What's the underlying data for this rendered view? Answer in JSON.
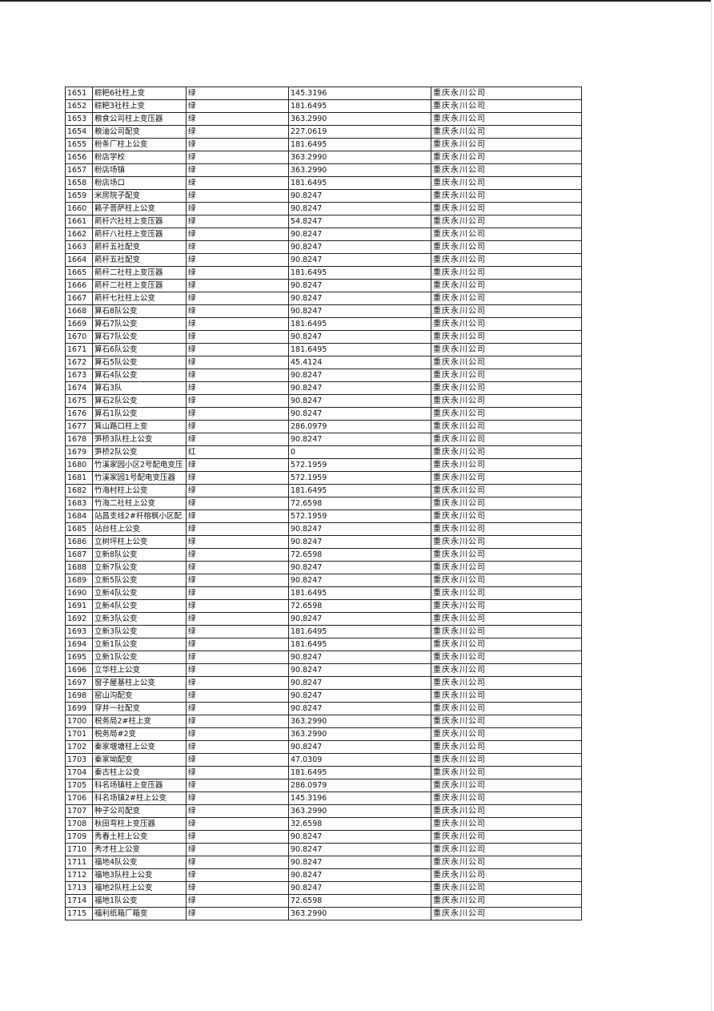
{
  "table": {
    "rows": [
      [
        "1651",
        "粽粑6社柱上变",
        "绿",
        "145.3196",
        "重庆永川公司"
      ],
      [
        "1652",
        "粽粑3社柱上变",
        "绿",
        "181.6495",
        "重庆永川公司"
      ],
      [
        "1653",
        "粮食公司柱上变压器",
        "绿",
        "363.2990",
        "重庆永川公司"
      ],
      [
        "1654",
        "粮油公司配变",
        "绿",
        "227.0619",
        "重庆永川公司"
      ],
      [
        "1655",
        "粉条厂柱上公变",
        "绿",
        "181.6495",
        "重庆永川公司"
      ],
      [
        "1656",
        "粉店学校",
        "绿",
        "363.2990",
        "重庆永川公司"
      ],
      [
        "1657",
        "粉店场镇",
        "绿",
        "363.2990",
        "重庆永川公司"
      ],
      [
        "1658",
        "粉店场口",
        "绿",
        "181.6495",
        "重庆永川公司"
      ],
      [
        "1659",
        "米房院子配变",
        "绿",
        "90.8247",
        "重庆永川公司"
      ],
      [
        "1660",
        "籁子菩萨柱上公变",
        "绿",
        "90.8247",
        "重庆永川公司"
      ],
      [
        "1661",
        "箭杆六社柱上变压器",
        "绿",
        "54.8247",
        "重庆永川公司"
      ],
      [
        "1662",
        "箭杆八社柱上变压器",
        "绿",
        "90.8247",
        "重庆永川公司"
      ],
      [
        "1663",
        "箭杆五社配变",
        "绿",
        "90.8247",
        "重庆永川公司"
      ],
      [
        "1664",
        "箭杆五社配变",
        "绿",
        "90.8247",
        "重庆永川公司"
      ],
      [
        "1665",
        "箭杆二社柱上变压器",
        "绿",
        "181.6495",
        "重庆永川公司"
      ],
      [
        "1666",
        "箭杆二社柱上变压器",
        "绿",
        "90.8247",
        "重庆永川公司"
      ],
      [
        "1667",
        "箭杆七社柱上公变",
        "绿",
        "90.8247",
        "重庆永川公司"
      ],
      [
        "1668",
        "算石8队公变",
        "绿",
        "90.8247",
        "重庆永川公司"
      ],
      [
        "1669",
        "算石7队公变",
        "绿",
        "181.6495",
        "重庆永川公司"
      ],
      [
        "1670",
        "算石7队公变",
        "绿",
        "90.8247",
        "重庆永川公司"
      ],
      [
        "1671",
        "算石6队公变",
        "绿",
        "181.6495",
        "重庆永川公司"
      ],
      [
        "1672",
        "算石5队公变",
        "绿",
        "45.4124",
        "重庆永川公司"
      ],
      [
        "1673",
        "算石4队公变",
        "绿",
        "90.8247",
        "重庆永川公司"
      ],
      [
        "1674",
        "算石3队",
        "绿",
        "90.8247",
        "重庆永川公司"
      ],
      [
        "1675",
        "算石2队公变",
        "绿",
        "90.8247",
        "重庆永川公司"
      ],
      [
        "1676",
        "算石1队公变",
        "绿",
        "90.8247",
        "重庆永川公司"
      ],
      [
        "1677",
        "箕山路口柱上变",
        "绿",
        "286.0979",
        "重庆永川公司"
      ],
      [
        "1678",
        "笋桥3队柱上公变",
        "绿",
        "90.8247",
        "重庆永川公司"
      ],
      [
        "1679",
        "笋桥2队公变",
        "红",
        "0",
        "重庆永川公司"
      ],
      [
        "1680",
        "竹溪家园小区2号配电变压",
        "绿",
        "572.1959",
        "重庆永川公司"
      ],
      [
        "1681",
        "竹溪家园1号配电变压器",
        "绿",
        "572.1959",
        "重庆永川公司"
      ],
      [
        "1682",
        "竹海村柱上公变",
        "绿",
        "181.6495",
        "重庆永川公司"
      ],
      [
        "1683",
        "竹海二社柱上公变",
        "绿",
        "72.6598",
        "重庆永川公司"
      ],
      [
        "1684",
        "站昌支线2#杆榕枫小区配",
        "绿",
        "572.1959",
        "重庆永川公司"
      ],
      [
        "1685",
        "站台柱上公变",
        "绿",
        "90.8247",
        "重庆永川公司"
      ],
      [
        "1686",
        "立树坪柱上公变",
        "绿",
        "90.8247",
        "重庆永川公司"
      ],
      [
        "1687",
        "立新8队公变",
        "绿",
        "72.6598",
        "重庆永川公司"
      ],
      [
        "1688",
        "立新7队公变",
        "绿",
        "90.8247",
        "重庆永川公司"
      ],
      [
        "1689",
        "立新5队公变",
        "绿",
        "90.8247",
        "重庆永川公司"
      ],
      [
        "1690",
        "立新4队公变",
        "绿",
        "181.6495",
        "重庆永川公司"
      ],
      [
        "1691",
        "立新4队公变",
        "绿",
        "72.6598",
        "重庆永川公司"
      ],
      [
        "1692",
        "立新3队公变",
        "绿",
        "90.8247",
        "重庆永川公司"
      ],
      [
        "1693",
        "立新3队公变",
        "绿",
        "181.6495",
        "重庆永川公司"
      ],
      [
        "1694",
        "立新1队公变",
        "绿",
        "181.6495",
        "重庆永川公司"
      ],
      [
        "1695",
        "立新1队公变",
        "绿",
        "90.8247",
        "重庆永川公司"
      ],
      [
        "1696",
        "立华柱上公变",
        "绿",
        "90.8247",
        "重庆永川公司"
      ],
      [
        "1697",
        "窗子屋基柱上公变",
        "绿",
        "90.8247",
        "重庆永川公司"
      ],
      [
        "1698",
        "窑山沟配变",
        "绿",
        "90.8247",
        "重庆永川公司"
      ],
      [
        "1699",
        "穿井一社配变",
        "绿",
        "90.8247",
        "重庆永川公司"
      ],
      [
        "1700",
        "税务局2#柱上变",
        "绿",
        "363.2990",
        "重庆永川公司"
      ],
      [
        "1701",
        "税务局#2变",
        "绿",
        "363.2990",
        "重庆永川公司"
      ],
      [
        "1702",
        "秦家堰塘柱上公变",
        "绿",
        "90.8247",
        "重庆永川公司"
      ],
      [
        "1703",
        "秦家坳配变",
        "绿",
        "47.0309",
        "重庆永川公司"
      ],
      [
        "1704",
        "秦古柱上公变",
        "绿",
        "181.6495",
        "重庆永川公司"
      ],
      [
        "1705",
        "科名场镇柱上变压器",
        "绿",
        "286.0979",
        "重庆永川公司"
      ],
      [
        "1706",
        "科名场镇2#柱上公变",
        "绿",
        "145.3196",
        "重庆永川公司"
      ],
      [
        "1707",
        "种子公司配变",
        "绿",
        "363.2990",
        "重庆永川公司"
      ],
      [
        "1708",
        "秋田弯柱上变压器",
        "绿",
        "32.6598",
        "重庆永川公司"
      ],
      [
        "1709",
        "秀春土柱上公变",
        "绿",
        "90.8247",
        "重庆永川公司"
      ],
      [
        "1710",
        "秀才柱上公变",
        "绿",
        "90.8247",
        "重庆永川公司"
      ],
      [
        "1711",
        "福地4队公变",
        "绿",
        "90.8247",
        "重庆永川公司"
      ],
      [
        "1712",
        "福地3队柱上公变",
        "绿",
        "90.8247",
        "重庆永川公司"
      ],
      [
        "1713",
        "福地2队柱上公变",
        "绿",
        "90.8247",
        "重庆永川公司"
      ],
      [
        "1714",
        "福地1队公变",
        "绿",
        "72.6598",
        "重庆永川公司"
      ],
      [
        "1715",
        "福利纸箱厂箱变",
        "绿",
        "363.2990",
        "重庆永川公司"
      ]
    ]
  }
}
